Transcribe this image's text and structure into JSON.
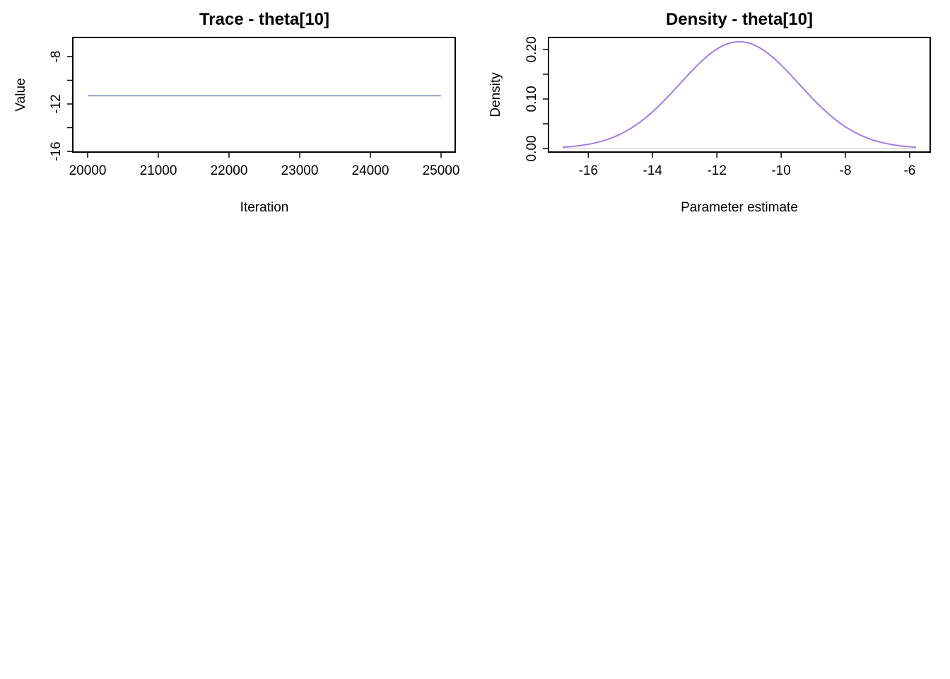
{
  "chart_data": [
    {
      "type": "line",
      "title": "Trace - theta[10]",
      "xlabel": "Iteration",
      "ylabel": "Value",
      "xlim": [
        20000,
        25000
      ],
      "ylim": [
        -16,
        -8
      ],
      "xticks": [
        20000,
        21000,
        22000,
        23000,
        24000,
        25000
      ],
      "xtick_labels": [
        "20000",
        "21000",
        "22000",
        "23000",
        "24000",
        "25000"
      ],
      "yticks": [
        -16,
        -14,
        -12,
        -10,
        -8
      ],
      "ytick_labels": [
        "-16",
        "",
        "-12",
        "",
        "-8"
      ],
      "series": [
        {
          "x": [
            20000,
            25000
          ],
          "y": [
            -11.3,
            -11.3
          ],
          "color": "#9aa3c0"
        }
      ],
      "grid": false
    },
    {
      "type": "line",
      "title": "Density - theta[10]",
      "xlabel": "Parameter estimate",
      "ylabel": "Density",
      "xlim": [
        -16.8,
        -5.8
      ],
      "ylim": [
        0,
        0.22
      ],
      "xticks": [
        -16,
        -14,
        -12,
        -10,
        -8,
        -6
      ],
      "xtick_labels": [
        "-16",
        "-14",
        "-12",
        "-10",
        "-8",
        "-6"
      ],
      "yticks": [
        0.0,
        0.05,
        0.1,
        0.15,
        0.2
      ],
      "ytick_labels": [
        "0.00",
        "",
        "0.10",
        "",
        "0.20"
      ],
      "density": {
        "mean": -11.3,
        "sd": 1.85,
        "from": -16.8,
        "to": -5.8
      },
      "series": [
        {
          "color": "#a07ee0"
        }
      ],
      "baseline_color": "#d9d9d9",
      "grid": false
    }
  ]
}
